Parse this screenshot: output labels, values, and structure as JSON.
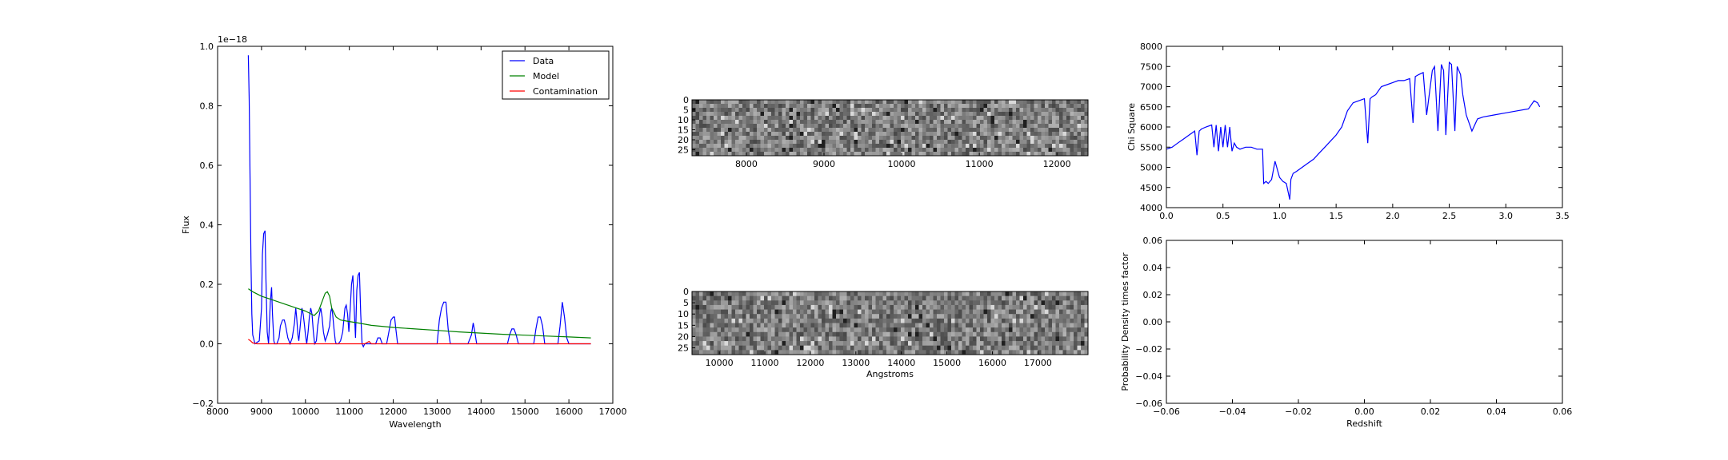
{
  "chart_data": [
    {
      "id": "flux",
      "type": "line",
      "xlabel": "Wavelength",
      "ylabel": "Flux",
      "offset_label": "1e−18",
      "xlim": [
        8000,
        17000
      ],
      "ylim": [
        -0.2,
        1.0
      ],
      "xticks": [
        8000,
        9000,
        10000,
        11000,
        12000,
        13000,
        14000,
        15000,
        16000,
        17000
      ],
      "yticks": [
        -0.2,
        0.0,
        0.2,
        0.4,
        0.6,
        0.8,
        1.0
      ],
      "ytick_labels": [
        "−0.2",
        "0.0",
        "0.2",
        "0.4",
        "0.6",
        "0.8",
        "1.0"
      ],
      "legend_position": "top-right",
      "series": [
        {
          "name": "Data",
          "color": "#0000ff",
          "x": [
            8700,
            8720,
            8740,
            8760,
            8780,
            8800,
            8850,
            8950,
            9000,
            9020,
            9050,
            9080,
            9100,
            9130,
            9160,
            9200,
            9230,
            9250,
            9280,
            9300,
            9350,
            9400,
            9430,
            9480,
            9520,
            9550,
            9600,
            9650,
            9700,
            9750,
            9780,
            9800,
            9830,
            9850,
            9870,
            9900,
            9920,
            9950,
            9980,
            10000,
            10030,
            10060,
            10090,
            10120,
            10150,
            10180,
            10210,
            10250,
            10280,
            10320,
            10350,
            10380,
            10410,
            10450,
            10500,
            10550,
            10580,
            10600,
            10620,
            10650,
            10680,
            10700,
            10750,
            10800,
            10850,
            10900,
            10930,
            10960,
            10990,
            11020,
            11050,
            11080,
            11110,
            11140,
            11170,
            11200,
            11230,
            11260,
            11290,
            11320,
            11350,
            11400,
            11500,
            11600,
            11650,
            11700,
            11750,
            11800,
            11850,
            11900,
            11950,
            12000,
            12030,
            12060,
            12100,
            12200,
            12400,
            12600,
            12800,
            13000,
            13050,
            13100,
            13150,
            13200,
            13250,
            13300,
            13500,
            13700,
            13780,
            13820,
            13860,
            13900,
            14000,
            14300,
            14600,
            14650,
            14700,
            14750,
            14800,
            14850,
            14900,
            15000,
            15200,
            15250,
            15300,
            15350,
            15400,
            15450,
            15600,
            15750,
            15800,
            15850,
            15900,
            15950,
            16000,
            16050,
            16300,
            16500
          ],
          "y": [
            0.97,
            0.82,
            0.55,
            0.28,
            0.1,
            0.03,
            0.0,
            0.01,
            0.12,
            0.3,
            0.37,
            0.38,
            0.22,
            0.04,
            0.0,
            0.14,
            0.19,
            0.1,
            0.01,
            0.0,
            0.0,
            0.02,
            0.06,
            0.08,
            0.08,
            0.06,
            0.02,
            0.0,
            0.02,
            0.07,
            0.12,
            0.09,
            0.03,
            0.01,
            0.04,
            0.09,
            0.12,
            0.1,
            0.06,
            0.03,
            0.0,
            0.04,
            0.09,
            0.12,
            0.1,
            0.04,
            0.0,
            0.01,
            0.06,
            0.1,
            0.12,
            0.09,
            0.04,
            0.01,
            0.03,
            0.06,
            0.11,
            0.12,
            0.1,
            0.05,
            0.01,
            0.0,
            0.0,
            0.01,
            0.04,
            0.12,
            0.13,
            0.1,
            0.04,
            0.12,
            0.2,
            0.23,
            0.12,
            0.02,
            0.18,
            0.23,
            0.24,
            0.1,
            0.0,
            -0.01,
            0.0,
            0.0,
            0.0,
            0.0,
            0.02,
            0.02,
            0.0,
            0.0,
            0.0,
            0.04,
            0.08,
            0.09,
            0.09,
            0.05,
            0.0,
            0.0,
            0.0,
            0.0,
            0.0,
            0.0,
            0.08,
            0.12,
            0.14,
            0.14,
            0.05,
            0.0,
            0.0,
            0.0,
            0.03,
            0.07,
            0.04,
            0.0,
            0.0,
            0.0,
            0.0,
            0.03,
            0.05,
            0.05,
            0.03,
            0.0,
            0.0,
            0.0,
            0.0,
            0.05,
            0.09,
            0.09,
            0.06,
            0.0,
            0.0,
            0.0,
            0.06,
            0.14,
            0.09,
            0.02,
            0.0,
            0.0,
            0.0,
            0.0
          ]
        },
        {
          "name": "Model",
          "color": "#008000",
          "x": [
            8700,
            8800,
            9000,
            9200,
            9400,
            9600,
            9800,
            10000,
            10200,
            10300,
            10400,
            10450,
            10500,
            10550,
            10600,
            10700,
            10800,
            11000,
            11200,
            11500,
            12000,
            12500,
            13000,
            13500,
            14000,
            14500,
            15000,
            15500,
            16000,
            16500
          ],
          "y": [
            0.185,
            0.175,
            0.16,
            0.15,
            0.14,
            0.13,
            0.12,
            0.11,
            0.095,
            0.11,
            0.15,
            0.17,
            0.175,
            0.16,
            0.12,
            0.09,
            0.08,
            0.075,
            0.07,
            0.062,
            0.055,
            0.05,
            0.045,
            0.04,
            0.036,
            0.032,
            0.029,
            0.026,
            0.023,
            0.02
          ]
        },
        {
          "name": "Contamination",
          "color": "#ff0000",
          "x": [
            8700,
            8750,
            8800,
            8900,
            9500,
            10000,
            11000,
            11350,
            11450,
            11500,
            12000,
            13000,
            14000,
            15000,
            16000,
            16500
          ],
          "y": [
            0.015,
            0.01,
            0.003,
            0.0,
            0.0,
            0.0,
            0.0,
            0.0,
            0.008,
            0.0,
            0.0,
            0.0,
            0.0,
            0.0,
            0.0,
            0.0
          ]
        }
      ]
    },
    {
      "id": "spectrum-2d-top",
      "type": "heatmap",
      "xlim": [
        7300,
        12400
      ],
      "xticks": [
        8000,
        9000,
        10000,
        11000,
        12000
      ],
      "ylim": [
        0,
        28
      ],
      "yticks": [
        0,
        5,
        10,
        15,
        20,
        25
      ],
      "colormap": "gray"
    },
    {
      "id": "spectrum-2d-bottom",
      "type": "heatmap",
      "xlabel": "Angstroms",
      "xlim": [
        9400,
        18100
      ],
      "xticks": [
        10000,
        11000,
        12000,
        13000,
        14000,
        15000,
        16000,
        17000
      ],
      "ylim": [
        0,
        28
      ],
      "yticks": [
        0,
        5,
        10,
        15,
        20,
        25
      ],
      "colormap": "gray"
    },
    {
      "id": "chi-square",
      "type": "line",
      "ylabel": "Chi Square",
      "xlim": [
        0.0,
        3.5
      ],
      "ylim": [
        4000,
        8000
      ],
      "xticks": [
        0.0,
        0.5,
        1.0,
        1.5,
        2.0,
        2.5,
        3.0,
        3.5
      ],
      "xtick_labels": [
        "0.0",
        "0.5",
        "1.0",
        "1.5",
        "2.0",
        "2.5",
        "3.0",
        "3.5"
      ],
      "yticks": [
        4000,
        4500,
        5000,
        5500,
        6000,
        6500,
        7000,
        7500,
        8000
      ],
      "series": [
        {
          "color": "#0000ff",
          "x": [
            0.0,
            0.05,
            0.1,
            0.15,
            0.2,
            0.25,
            0.27,
            0.29,
            0.31,
            0.35,
            0.4,
            0.42,
            0.44,
            0.46,
            0.48,
            0.5,
            0.52,
            0.54,
            0.56,
            0.58,
            0.6,
            0.62,
            0.65,
            0.7,
            0.75,
            0.8,
            0.85,
            0.86,
            0.88,
            0.9,
            0.93,
            0.96,
            1.0,
            1.03,
            1.06,
            1.09,
            1.1,
            1.12,
            1.15,
            1.2,
            1.25,
            1.3,
            1.35,
            1.4,
            1.45,
            1.5,
            1.55,
            1.6,
            1.65,
            1.7,
            1.75,
            1.78,
            1.8,
            1.82,
            1.85,
            1.9,
            1.95,
            2.0,
            2.05,
            2.1,
            2.15,
            2.18,
            2.2,
            2.23,
            2.27,
            2.3,
            2.35,
            2.37,
            2.4,
            2.43,
            2.45,
            2.47,
            2.5,
            2.52,
            2.55,
            2.57,
            2.6,
            2.62,
            2.65,
            2.7,
            2.75,
            2.8,
            2.9,
            3.0,
            3.1,
            3.2,
            3.25,
            3.28,
            3.3
          ],
          "y": [
            5450,
            5500,
            5600,
            5700,
            5800,
            5900,
            5300,
            5900,
            5950,
            6000,
            6050,
            5500,
            6050,
            5400,
            6000,
            5500,
            6050,
            5500,
            6000,
            5400,
            5600,
            5500,
            5450,
            5500,
            5500,
            5450,
            5450,
            4600,
            4650,
            4600,
            4700,
            5150,
            4750,
            4650,
            4600,
            4200,
            4700,
            4850,
            4900,
            5000,
            5100,
            5200,
            5350,
            5500,
            5650,
            5800,
            6000,
            6400,
            6600,
            6650,
            6700,
            5600,
            6700,
            6750,
            6800,
            7000,
            7050,
            7100,
            7150,
            7150,
            7200,
            6100,
            7250,
            7300,
            7350,
            6300,
            7400,
            7500,
            5900,
            7550,
            7400,
            5800,
            7600,
            7550,
            5900,
            7500,
            7300,
            6800,
            6300,
            5900,
            6200,
            6250,
            6300,
            6350,
            6400,
            6450,
            6650,
            6600,
            6500
          ]
        }
      ]
    },
    {
      "id": "probability",
      "type": "line",
      "xlabel": "Redshift",
      "ylabel": "Probability Density times factor",
      "xlim": [
        -0.06,
        0.06
      ],
      "ylim": [
        -0.06,
        0.06
      ],
      "xticks": [
        -0.06,
        -0.04,
        -0.02,
        0.0,
        0.02,
        0.04,
        0.06
      ],
      "xtick_labels": [
        "−0.06",
        "−0.04",
        "−0.02",
        "0.00",
        "0.02",
        "0.04",
        "0.06"
      ],
      "yticks": [
        -0.06,
        -0.04,
        -0.02,
        0.0,
        0.02,
        0.04,
        0.06
      ],
      "ytick_labels": [
        "−0.06",
        "−0.04",
        "−0.02",
        "0.00",
        "0.02",
        "0.04",
        "0.06"
      ],
      "series": []
    }
  ]
}
